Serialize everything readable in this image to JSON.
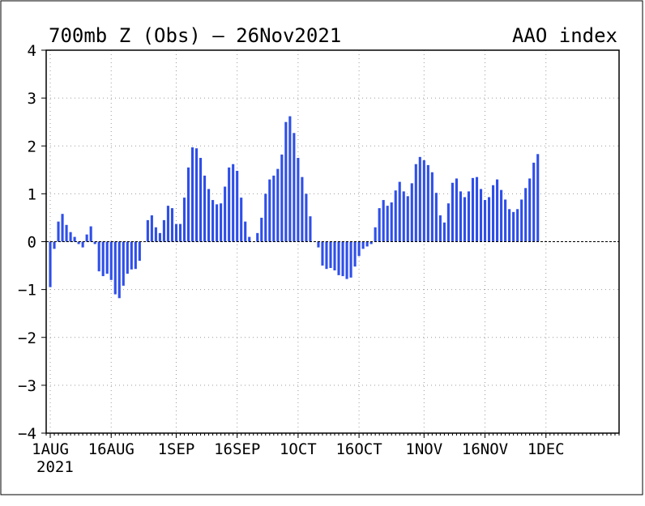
{
  "header": {
    "left_title": "700mb Z (Obs) – 26Nov2021",
    "right_title": "AAO index"
  },
  "colors": {
    "bar": "#2f4fe8",
    "axis": "#000000",
    "grid": "#9a9a9a",
    "background": "#ffffff"
  },
  "chart_data": {
    "type": "bar",
    "start_date": "2021-07-31",
    "ylim": [
      -4,
      4
    ],
    "yticks": [
      -4,
      -3,
      -2,
      -1,
      0,
      1,
      2,
      3,
      4
    ],
    "ytick_labels": [
      "−4",
      "−3",
      "−2",
      "−1",
      "0",
      "1",
      "2",
      "3",
      "4"
    ],
    "xtick_labels": [
      "1AUG",
      "16AUG",
      "1SEP",
      "16SEP",
      "1OCT",
      "16OCT",
      "1NOV",
      "16NOV",
      "1DEC"
    ],
    "xtick_dates": [
      "2021-08-01",
      "2021-08-16",
      "2021-09-01",
      "2021-09-16",
      "2021-10-01",
      "2021-10-16",
      "2021-11-01",
      "2021-11-16",
      "2021-12-01"
    ],
    "year_label": "2021",
    "grid": true,
    "zero_line": true,
    "values": [
      -0.95,
      -0.15,
      0.42,
      0.58,
      0.35,
      0.2,
      0.1,
      -0.05,
      -0.12,
      0.15,
      0.32,
      -0.05,
      -0.62,
      -0.72,
      -0.67,
      -0.8,
      -1.1,
      -1.18,
      -0.92,
      -0.67,
      -0.58,
      -0.57,
      -0.4,
      0.0,
      0.45,
      0.55,
      0.3,
      0.18,
      0.45,
      0.75,
      0.7,
      0.37,
      0.37,
      0.92,
      1.55,
      1.97,
      1.95,
      1.75,
      1.38,
      1.1,
      0.87,
      0.78,
      0.8,
      1.15,
      1.55,
      1.62,
      1.48,
      0.92,
      0.42,
      0.1,
      0.0,
      0.18,
      0.5,
      1.0,
      1.3,
      1.38,
      1.52,
      1.82,
      2.5,
      2.62,
      2.27,
      1.75,
      1.35,
      1.0,
      0.53,
      0.0,
      -0.12,
      -0.5,
      -0.57,
      -0.55,
      -0.6,
      -0.7,
      -0.72,
      -0.78,
      -0.75,
      -0.52,
      -0.3,
      -0.15,
      -0.1,
      -0.05,
      0.3,
      0.7,
      0.87,
      0.75,
      0.82,
      1.07,
      1.25,
      1.05,
      0.95,
      1.22,
      1.62,
      1.77,
      1.7,
      1.6,
      1.45,
      1.02,
      0.55,
      0.4,
      0.8,
      1.23,
      1.32,
      1.05,
      0.93,
      1.05,
      1.33,
      1.35,
      1.1,
      0.87,
      0.93,
      1.18,
      1.3,
      1.08,
      0.88,
      0.68,
      0.62,
      0.68,
      0.88,
      1.12,
      1.32,
      1.65,
      1.83
    ]
  }
}
